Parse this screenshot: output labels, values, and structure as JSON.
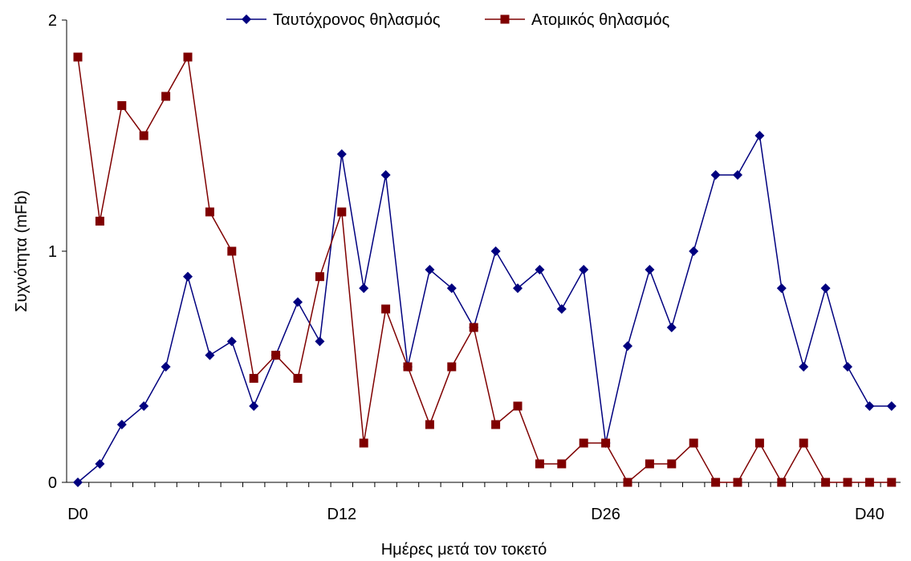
{
  "chart_data": {
    "type": "line",
    "xlabel": "Ημέρες μετά τον τοκετό",
    "ylabel": "Συχνότητα (mFb)",
    "ylim": [
      0,
      2
    ],
    "yticks": [
      "0",
      "1",
      "2"
    ],
    "x_tick_labels": [
      {
        "index": 0,
        "label": "D0"
      },
      {
        "index": 12,
        "label": "D12"
      },
      {
        "index": 24,
        "label": "D26"
      },
      {
        "index": 36,
        "label": "D40"
      }
    ],
    "point_count": 38,
    "grid": false,
    "legend_position": "top",
    "series": [
      {
        "name": "Ταυτόχρονος θηλασμός",
        "color": "#00007f",
        "marker": "diamond",
        "values": [
          0,
          0.08,
          0.25,
          0.33,
          0.5,
          0.89,
          0.55,
          0.61,
          0.33,
          0.55,
          0.78,
          0.61,
          1.42,
          0.84,
          1.33,
          0.5,
          0.92,
          0.84,
          0.67,
          1.0,
          0.84,
          0.92,
          0.75,
          0.92,
          0.17,
          0.59,
          0.92,
          0.67,
          1.0,
          1.33,
          1.33,
          1.5,
          0.84,
          0.5,
          0.84,
          0.5,
          0.33,
          0.33
        ]
      },
      {
        "name": "Ατομικός θηλασμός",
        "color": "#7f0000",
        "marker": "square",
        "values": [
          1.84,
          1.13,
          1.63,
          1.5,
          1.67,
          1.84,
          1.17,
          1.0,
          0.45,
          0.55,
          0.45,
          0.89,
          1.17,
          0.17,
          0.75,
          0.5,
          0.25,
          0.5,
          0.67,
          0.25,
          0.33,
          0.08,
          0.08,
          0.17,
          0.17,
          0.0,
          0.08,
          0.08,
          0.17,
          0.0,
          0.0,
          0.17,
          0.0,
          0.17,
          0.0,
          0.0,
          0.0,
          0.0
        ]
      }
    ]
  }
}
